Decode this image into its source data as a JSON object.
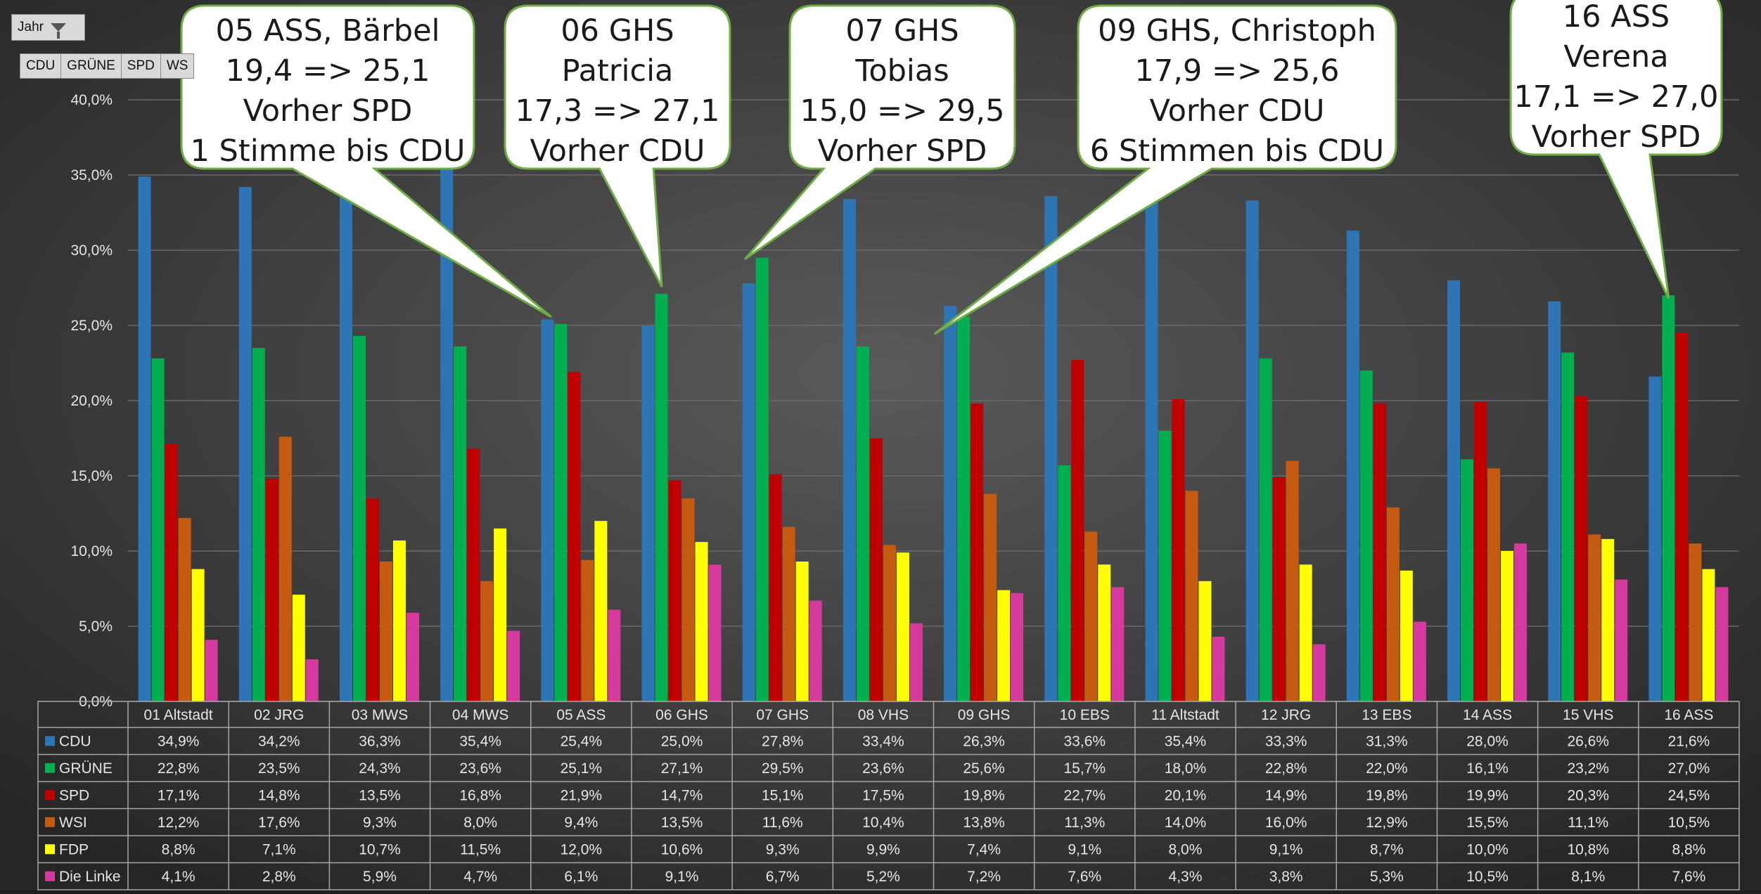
{
  "controls": {
    "filter_label": "Jahr",
    "series_buttons": [
      "CDU",
      "GRÜNE",
      "SPD",
      "WS"
    ]
  },
  "chart_data": {
    "type": "bar",
    "categories": [
      "01 Altstadt",
      "02 JRG",
      "03 MWS",
      "04 MWS",
      "05 ASS",
      "06 GHS",
      "07 GHS",
      "08 VHS",
      "09 GHS",
      "10 EBS",
      "11 Altstadt",
      "12 JRG",
      "13 EBS",
      "14 ASS",
      "15 VHS",
      "16 ASS"
    ],
    "yticks": [
      "0,0%",
      "5,0%",
      "10,0%",
      "15,0%",
      "20,0%",
      "25,0%",
      "30,0%",
      "35,0%",
      "40,0%"
    ],
    "ylim": [
      0,
      40
    ],
    "grid": true,
    "legend": "data-table",
    "series": [
      {
        "name": "CDU",
        "color": "#2e75b6",
        "values": [
          34.9,
          34.2,
          36.3,
          35.4,
          25.4,
          25.0,
          27.8,
          33.4,
          26.3,
          33.6,
          35.4,
          33.3,
          31.3,
          28.0,
          26.6,
          21.6
        ],
        "labels": [
          "34,9%",
          "34,2%",
          "36,3%",
          "35,4%",
          "25,4%",
          "25,0%",
          "27,8%",
          "33,4%",
          "26,3%",
          "33,6%",
          "35,4%",
          "33,3%",
          "31,3%",
          "28,0%",
          "26,6%",
          "21,6%"
        ]
      },
      {
        "name": "GRÜNE",
        "color": "#00b050",
        "values": [
          22.8,
          23.5,
          24.3,
          23.6,
          25.1,
          27.1,
          29.5,
          23.6,
          25.6,
          15.7,
          18.0,
          22.8,
          22.0,
          16.1,
          23.2,
          27.0
        ],
        "labels": [
          "22,8%",
          "23,5%",
          "24,3%",
          "23,6%",
          "25,1%",
          "27,1%",
          "29,5%",
          "23,6%",
          "25,6%",
          "15,7%",
          "18,0%",
          "22,8%",
          "22,0%",
          "16,1%",
          "23,2%",
          "27,0%"
        ]
      },
      {
        "name": "SPD",
        "color": "#c00000",
        "values": [
          17.1,
          14.8,
          13.5,
          16.8,
          21.9,
          14.7,
          15.1,
          17.5,
          19.8,
          22.7,
          20.1,
          14.9,
          19.8,
          19.9,
          20.3,
          24.5
        ],
        "labels": [
          "17,1%",
          "14,8%",
          "13,5%",
          "16,8%",
          "21,9%",
          "14,7%",
          "15,1%",
          "17,5%",
          "19,8%",
          "22,7%",
          "20,1%",
          "14,9%",
          "19,8%",
          "19,9%",
          "20,3%",
          "24,5%"
        ]
      },
      {
        "name": "WSI",
        "color": "#c55a11",
        "values": [
          12.2,
          17.6,
          9.3,
          8.0,
          9.4,
          13.5,
          11.6,
          10.4,
          13.8,
          11.3,
          14.0,
          16.0,
          12.9,
          15.5,
          11.1,
          10.5
        ],
        "labels": [
          "12,2%",
          "17,6%",
          "9,3%",
          "8,0%",
          "9,4%",
          "13,5%",
          "11,6%",
          "10,4%",
          "13,8%",
          "11,3%",
          "14,0%",
          "16,0%",
          "12,9%",
          "15,5%",
          "11,1%",
          "10,5%"
        ]
      },
      {
        "name": "FDP",
        "color": "#ffff00",
        "values": [
          8.8,
          7.1,
          10.7,
          11.5,
          12.0,
          10.6,
          9.3,
          9.9,
          7.4,
          9.1,
          8.0,
          9.1,
          8.7,
          10.0,
          10.8,
          8.8
        ],
        "labels": [
          "8,8%",
          "7,1%",
          "10,7%",
          "11,5%",
          "12,0%",
          "10,6%",
          "9,3%",
          "9,9%",
          "7,4%",
          "9,1%",
          "8,0%",
          "9,1%",
          "8,7%",
          "10,0%",
          "10,8%",
          "8,8%"
        ]
      },
      {
        "name": "Die Linke",
        "color": "#d63a9e",
        "values": [
          4.1,
          2.8,
          5.9,
          4.7,
          6.1,
          9.1,
          6.7,
          5.2,
          7.2,
          7.6,
          4.3,
          3.8,
          5.3,
          10.5,
          8.1,
          7.6
        ],
        "labels": [
          "4,1%",
          "2,8%",
          "5,9%",
          "4,7%",
          "6,1%",
          "9,1%",
          "6,7%",
          "5,2%",
          "7,2%",
          "7,6%",
          "4,3%",
          "3,8%",
          "5,3%",
          "10,5%",
          "8,1%",
          "7,6%"
        ]
      }
    ],
    "annotations": [
      {
        "lines": [
          "05 ASS, Bärbel",
          "19,4 => 25,1",
          "Vorher SPD",
          "1 Stimme bis CDU"
        ],
        "category": "05 ASS",
        "series": "GRÜNE"
      },
      {
        "lines": [
          "06 GHS",
          "Patricia",
          "17,3 => 27,1",
          "Vorher CDU"
        ],
        "category": "06 GHS",
        "series": "GRÜNE"
      },
      {
        "lines": [
          "07 GHS",
          "Tobias",
          "15,0 => 29,5",
          "Vorher SPD"
        ],
        "category": "07 GHS",
        "series": "GRÜNE"
      },
      {
        "lines": [
          "09 GHS, Christoph",
          "17,9 => 25,6",
          "Vorher CDU",
          "6 Stimmen bis CDU"
        ],
        "category": "09 GHS",
        "series": "GRÜNE"
      },
      {
        "lines": [
          "16 ASS",
          "Verena",
          "17,1 => 27,0",
          "Vorher SPD"
        ],
        "category": "16 ASS",
        "series": "GRÜNE"
      }
    ]
  }
}
